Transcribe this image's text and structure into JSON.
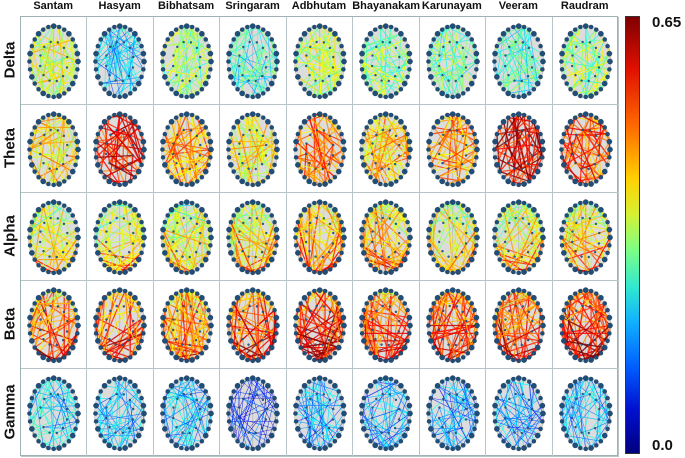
{
  "columns": [
    "Santam",
    "Hasyam",
    "Bibhatsam",
    "Sringaram",
    "Adbhutam",
    "Bhayanakam",
    "Karunayam",
    "Veeram",
    "Raudram"
  ],
  "rows": [
    "Delta",
    "Theta",
    "Alpha",
    "Beta",
    "Gamma"
  ],
  "colorbar": {
    "max_label": "0.65",
    "min_label": "0.0"
  },
  "connectivity_levels": [
    [
      0.38,
      0.2,
      0.33,
      0.26,
      0.36,
      0.33,
      0.3,
      0.28,
      0.34
    ],
    [
      0.42,
      0.56,
      0.46,
      0.4,
      0.48,
      0.44,
      0.46,
      0.58,
      0.52
    ],
    [
      0.4,
      0.4,
      0.39,
      0.41,
      0.46,
      0.44,
      0.41,
      0.41,
      0.43
    ],
    [
      0.5,
      0.5,
      0.48,
      0.52,
      0.54,
      0.53,
      0.53,
      0.52,
      0.55
    ],
    [
      0.26,
      0.24,
      0.25,
      0.15,
      0.22,
      0.22,
      0.22,
      0.22,
      0.24
    ]
  ]
}
